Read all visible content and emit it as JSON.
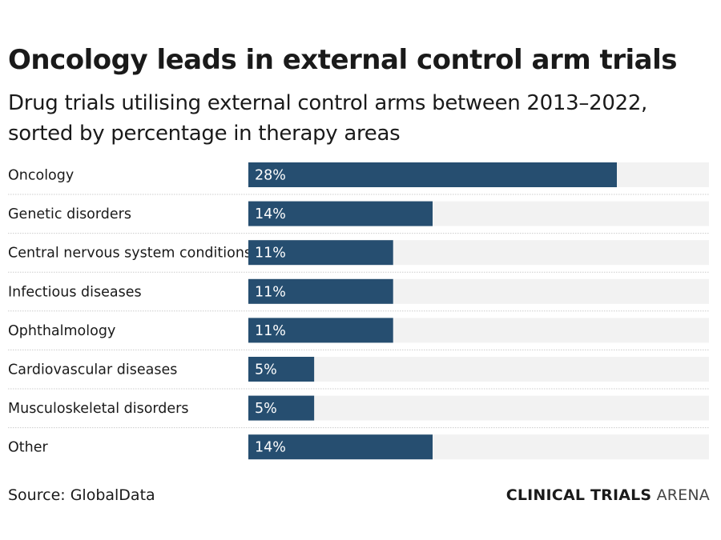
{
  "chart_data": {
    "type": "bar",
    "orientation": "horizontal",
    "title": "Oncology leads in external control arm trials",
    "subtitle": "Drug trials utilising external control arms between 2013–2022, sorted by percentage in therapy areas",
    "categories": [
      "Oncology",
      "Genetic disorders",
      "Central nervous system conditions",
      "Infectious diseases",
      "Ophthalmology",
      "Cardiovascular diseases",
      "Musculoskeletal disorders",
      "Other"
    ],
    "values": [
      28,
      14,
      11,
      11,
      11,
      5,
      5,
      14
    ],
    "value_labels": [
      "28%",
      "14%",
      "11%",
      "11%",
      "11%",
      "5%",
      "5%",
      "14%"
    ],
    "xlim": [
      0,
      35
    ],
    "xlabel": "",
    "ylabel": "",
    "grid": false,
    "legend": "none",
    "colors": {
      "bar": "#264e70",
      "track": "#f2f2f2",
      "separator": "#cccccc"
    }
  },
  "footer": {
    "source": "Source: GlobalData",
    "brand_bold": "CLINICAL TRIALS",
    "brand_light": "ARENA"
  }
}
